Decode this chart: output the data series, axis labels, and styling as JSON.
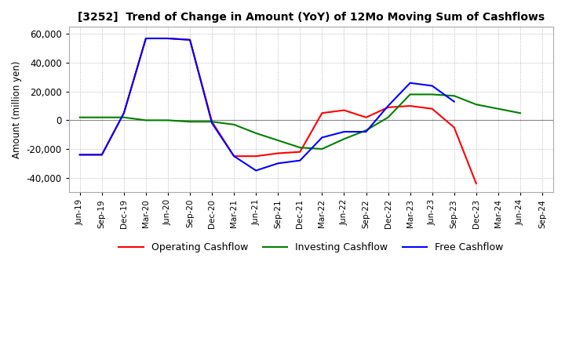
{
  "title": "[3252]  Trend of Change in Amount (YoY) of 12Mo Moving Sum of Cashflows",
  "ylabel": "Amount (million yen)",
  "ylim": [
    -50000,
    65000
  ],
  "yticks": [
    -40000,
    -20000,
    0,
    20000,
    40000,
    60000
  ],
  "x_labels": [
    "Jun-19",
    "Sep-19",
    "Dec-19",
    "Mar-20",
    "Jun-20",
    "Sep-20",
    "Dec-20",
    "Mar-21",
    "Jun-21",
    "Sep-21",
    "Dec-21",
    "Mar-22",
    "Jun-22",
    "Sep-22",
    "Dec-22",
    "Mar-23",
    "Jun-23",
    "Sep-23",
    "Dec-23",
    "Mar-24",
    "Jun-24",
    "Sep-24"
  ],
  "operating": [
    -24000,
    -24000,
    5000,
    57000,
    57000,
    56000,
    -1000,
    -25000,
    -25000,
    -23000,
    -22000,
    5000,
    7000,
    2000,
    9000,
    10000,
    8000,
    -5000,
    -44000,
    null,
    null,
    null
  ],
  "investing": [
    2000,
    2000,
    2000,
    0,
    0,
    -1000,
    -1000,
    -3000,
    -9000,
    -14000,
    -19000,
    -20000,
    -13000,
    -7000,
    2000,
    18000,
    18000,
    17000,
    11000,
    8000,
    5000,
    null
  ],
  "free": [
    -24000,
    -24000,
    5000,
    57000,
    57000,
    56000,
    -2000,
    -25000,
    -35000,
    -30000,
    -28000,
    -12000,
    -8000,
    -8000,
    10000,
    26000,
    24000,
    13000,
    null,
    null,
    null,
    null
  ],
  "colors": {
    "operating": "#ff0000",
    "investing": "#008000",
    "free": "#0000ff"
  },
  "legend_labels": [
    "Operating Cashflow",
    "Investing Cashflow",
    "Free Cashflow"
  ],
  "background_color": "#ffffff",
  "grid_color": "#aaaaaa"
}
